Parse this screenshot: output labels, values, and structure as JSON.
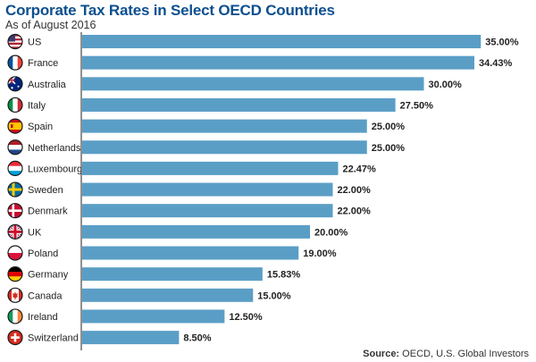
{
  "title": "Corporate Tax Rates in Select OECD Countries",
  "subtitle": "As of August 2016",
  "source_label": "Source:",
  "source_text": "OECD, U.S. Global Investors",
  "colors": {
    "bar": "#5a9ec6",
    "axis": "#222222",
    "title": "#0d4f8f"
  },
  "chart_data": {
    "type": "bar",
    "orientation": "horizontal",
    "title": "Corporate Tax Rates in Select OECD Countries",
    "subtitle": "As of August 2016",
    "categories": [
      "US",
      "France",
      "Australia",
      "Italy",
      "Spain",
      "Netherlands",
      "Luxembourg",
      "Sweden",
      "Denmark",
      "UK",
      "Poland",
      "Germany",
      "Canada",
      "Ireland",
      "Switzerland"
    ],
    "values": [
      35.0,
      34.43,
      30.0,
      27.5,
      25.0,
      25.0,
      22.47,
      22.0,
      22.0,
      20.0,
      19.0,
      15.83,
      15.0,
      12.5,
      8.5
    ],
    "value_labels": [
      "35.00%",
      "34.43%",
      "30.00%",
      "27.50%",
      "25.00%",
      "25.00%",
      "22.47%",
      "22.00%",
      "22.00%",
      "20.00%",
      "19.00%",
      "15.83%",
      "15.00%",
      "12.50%",
      "8.50%"
    ],
    "flag_icons": [
      "us-flag-icon",
      "france-flag-icon",
      "australia-flag-icon",
      "italy-flag-icon",
      "spain-flag-icon",
      "netherlands-flag-icon",
      "luxembourg-flag-icon",
      "sweden-flag-icon",
      "denmark-flag-icon",
      "uk-flag-icon",
      "poland-flag-icon",
      "germany-flag-icon",
      "canada-flag-icon",
      "ireland-flag-icon",
      "switzerland-flag-icon"
    ],
    "xlim": [
      0,
      35
    ],
    "grid": false,
    "unit": "%"
  }
}
